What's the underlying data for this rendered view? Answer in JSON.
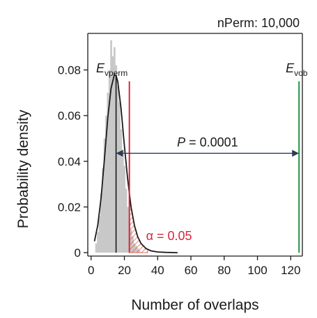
{
  "chart_data": {
    "type": "bar",
    "title": "nPerm: 10,000",
    "xlabel": "Number of overlaps",
    "ylabel": "Probability density",
    "xlim": [
      -2,
      127
    ],
    "ylim": [
      -0.0015,
      0.096
    ],
    "x_ticks": [
      0,
      20,
      40,
      60,
      80,
      100,
      120
    ],
    "y_ticks": [
      0,
      0.02,
      0.04,
      0.06,
      0.08
    ],
    "y_tick_labels": [
      "0",
      "0.02",
      "0.04",
      "0.06",
      "0.08"
    ],
    "grid": false,
    "histogram": {
      "bin_width": 1,
      "color": "#c8c8c8",
      "bins": [
        {
          "x": 3,
          "density": 0.004
        },
        {
          "x": 4,
          "density": 0.009
        },
        {
          "x": 5,
          "density": 0.016
        },
        {
          "x": 6,
          "density": 0.026
        },
        {
          "x": 7,
          "density": 0.037
        },
        {
          "x": 8,
          "density": 0.05
        },
        {
          "x": 9,
          "density": 0.06
        },
        {
          "x": 10,
          "density": 0.07
        },
        {
          "x": 11,
          "density": 0.08
        },
        {
          "x": 12,
          "density": 0.093
        },
        {
          "x": 13,
          "density": 0.086
        },
        {
          "x": 14,
          "density": 0.09
        },
        {
          "x": 15,
          "density": 0.082
        },
        {
          "x": 16,
          "density": 0.073
        },
        {
          "x": 17,
          "density": 0.066
        },
        {
          "x": 18,
          "density": 0.054
        },
        {
          "x": 19,
          "density": 0.045
        },
        {
          "x": 20,
          "density": 0.038
        },
        {
          "x": 21,
          "density": 0.028
        },
        {
          "x": 22,
          "density": 0.02
        },
        {
          "x": 23,
          "density": 0.014
        },
        {
          "x": 24,
          "density": 0.01
        },
        {
          "x": 25,
          "density": 0.007
        },
        {
          "x": 26,
          "density": 0.004
        },
        {
          "x": 27,
          "density": 0.003
        },
        {
          "x": 28,
          "density": 0.002
        },
        {
          "x": 29,
          "density": 0.001
        }
      ]
    },
    "fitted_curve": {
      "color": "#1a1a1a",
      "points": [
        {
          "x": 2,
          "y": 0.005
        },
        {
          "x": 4,
          "y": 0.012
        },
        {
          "x": 6,
          "y": 0.024
        },
        {
          "x": 8,
          "y": 0.041
        },
        {
          "x": 10,
          "y": 0.059
        },
        {
          "x": 12,
          "y": 0.072
        },
        {
          "x": 14,
          "y": 0.078
        },
        {
          "x": 15,
          "y": 0.0775
        },
        {
          "x": 16,
          "y": 0.075
        },
        {
          "x": 18,
          "y": 0.063
        },
        {
          "x": 20,
          "y": 0.047
        },
        {
          "x": 22,
          "y": 0.032
        },
        {
          "x": 24,
          "y": 0.02
        },
        {
          "x": 26,
          "y": 0.012
        },
        {
          "x": 28,
          "y": 0.007
        },
        {
          "x": 30,
          "y": 0.004
        },
        {
          "x": 33,
          "y": 0.0018
        },
        {
          "x": 36,
          "y": 0.0008
        },
        {
          "x": 40,
          "y": 0.0003
        },
        {
          "x": 45,
          "y": 0.0001
        },
        {
          "x": 52,
          "y": 0.0
        }
      ]
    },
    "mean_line": {
      "x": 15,
      "color": "#1a1a1a"
    },
    "threshold_line": {
      "x": 23,
      "y_top": 0.075,
      "color": "#d7263d"
    },
    "observed_line": {
      "x": 125,
      "y_top": 0.075,
      "color": "#1a9641"
    },
    "alpha_region": {
      "x_start": 23,
      "x_end": 34,
      "color": "#e8543a",
      "label": "α = 0.05",
      "label_x": 33,
      "label_y": 0.0055
    },
    "arrow": {
      "x_start": 15,
      "x_end": 125,
      "y": 0.0435,
      "color": "#2e3b55"
    },
    "p_value_label": {
      "text": "P = 0.0001",
      "x": 70,
      "y": 0.0465
    },
    "e_vperm_label": {
      "main": "E",
      "sub": "vperm",
      "x": 3,
      "y": 0.079
    },
    "e_vob_label": {
      "main": "E",
      "sub": "vob",
      "x": 117,
      "y": 0.079
    }
  }
}
